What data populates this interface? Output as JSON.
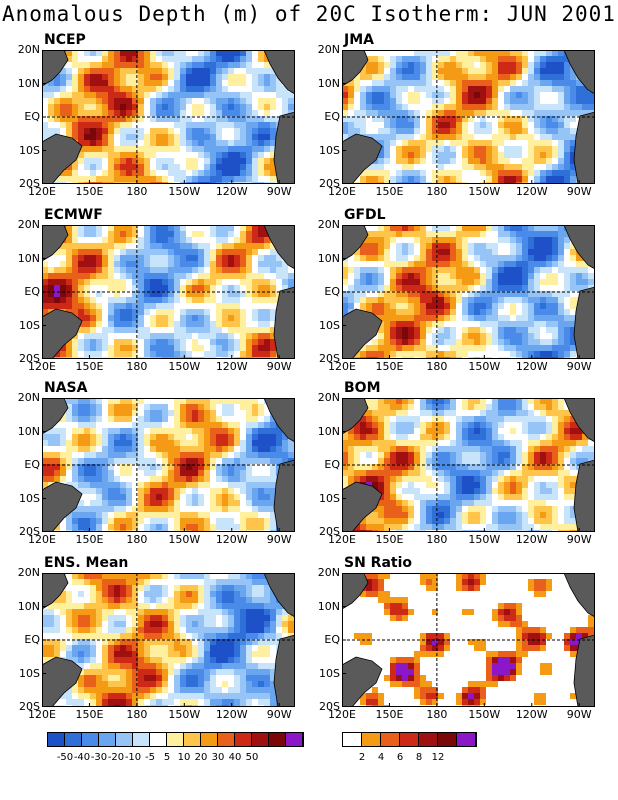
{
  "title": "Anomalous Depth (m) of 20C Isotherm: JUN 2001",
  "chart_data": {
    "type": "heatmap",
    "panels": [
      {
        "id": "ncep",
        "label": "NCEP"
      },
      {
        "id": "jma",
        "label": "JMA"
      },
      {
        "id": "ecmwf",
        "label": "ECMWF"
      },
      {
        "id": "gfdl",
        "label": "GFDL"
      },
      {
        "id": "nasa",
        "label": "NASA"
      },
      {
        "id": "bom",
        "label": "BOM"
      },
      {
        "id": "ens",
        "label": "ENS. Mean"
      },
      {
        "id": "sn",
        "label": "SN Ratio"
      }
    ],
    "xticks": [
      "120E",
      "150E",
      "180",
      "150W",
      "120W",
      "90W"
    ],
    "yticks": [
      "20N",
      "10N",
      "EQ",
      "10S",
      "20S"
    ],
    "xlim": [
      "120E",
      "80W"
    ],
    "ylim": [
      "20S",
      "20N"
    ],
    "anomaly_scale": {
      "labels": [
        "-50",
        "-40",
        "-30",
        "-20",
        "-10",
        "-5",
        "5",
        "10",
        "20",
        "30",
        "40",
        "50"
      ],
      "colors": [
        "#1e50c8",
        "#2f6fd8",
        "#4a8ae8",
        "#6aa6f0",
        "#96c4f6",
        "#c8e4fa",
        "#ffffff",
        "#fff0a0",
        "#ffc44a",
        "#f59a14",
        "#e8601a",
        "#cc2a16",
        "#a01010",
        "#7a0808",
        "#8a18c8"
      ]
    },
    "sn_scale": {
      "labels": [
        "2",
        "4",
        "6",
        "8",
        "12"
      ],
      "colors": [
        "#ffffff",
        "#f59a14",
        "#e8601a",
        "#cc2a16",
        "#a01010",
        "#7a0808",
        "#8a18c8"
      ]
    }
  }
}
